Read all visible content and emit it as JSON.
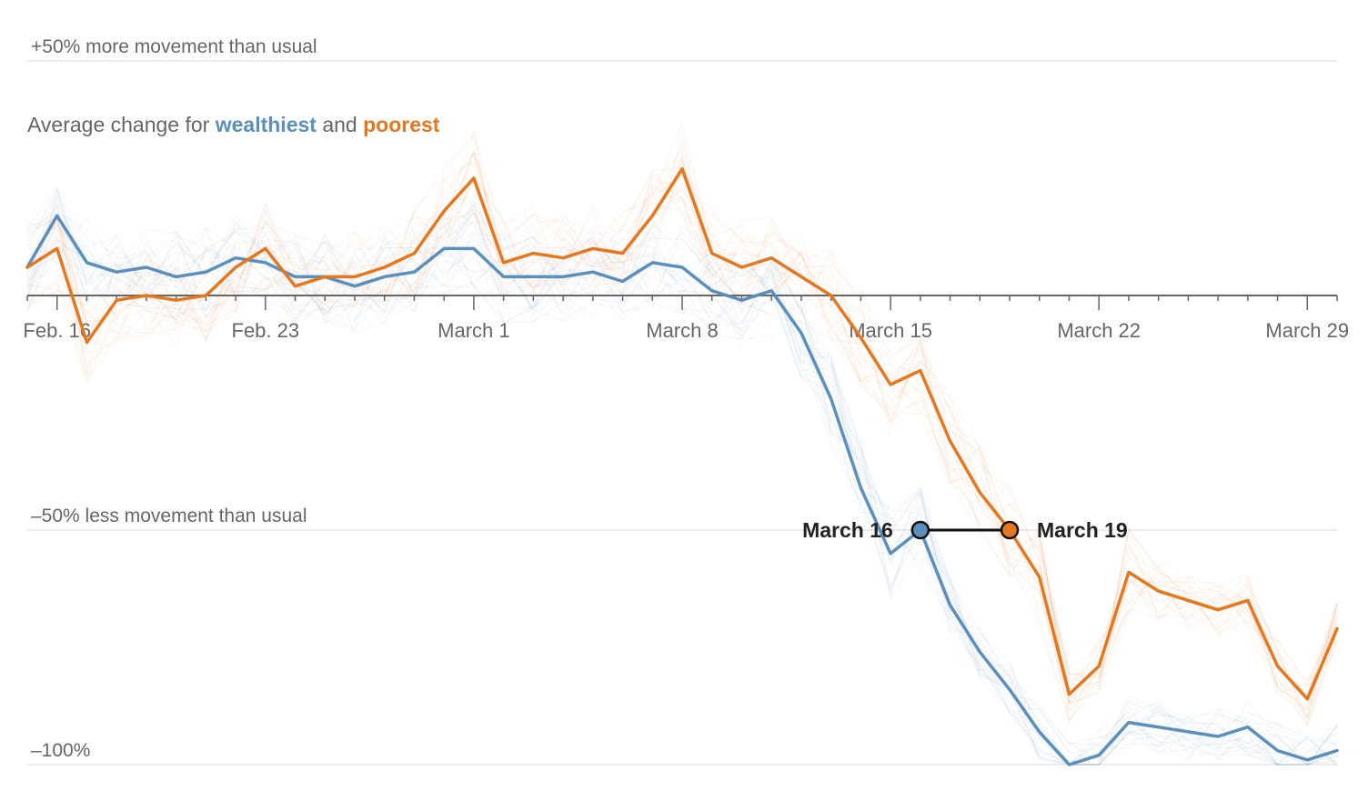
{
  "chart_data": {
    "type": "line",
    "subtitle": {
      "prefix": "Average change for ",
      "wealthiest": "wealthiest",
      "middle": " and ",
      "poorest": "poorest"
    },
    "y_labels": [
      {
        "value": 50,
        "text": "+50% more movement than usual"
      },
      {
        "value": -50,
        "text": "–50% less movement than usual"
      },
      {
        "value": -100,
        "text": "–100%"
      }
    ],
    "ylim": [
      -100,
      50
    ],
    "x_start": "Feb. 15",
    "x_end": "March 30",
    "x_tick_labels": [
      {
        "day": 1,
        "text": "Feb. 16"
      },
      {
        "day": 8,
        "text": "Feb. 23"
      },
      {
        "day": 15,
        "text": "March 1"
      },
      {
        "day": 22,
        "text": "March 8"
      },
      {
        "day": 29,
        "text": "March 15"
      },
      {
        "day": 36,
        "text": "March 22"
      },
      {
        "day": 43,
        "text": "March 29"
      }
    ],
    "series": [
      {
        "name": "wealthiest",
        "color": "#5b8fbd",
        "values": [
          6,
          17,
          7,
          5,
          6,
          4,
          5,
          8,
          7,
          4,
          4,
          2,
          4,
          5,
          10,
          10,
          4,
          4,
          4,
          5,
          3,
          7,
          6,
          1,
          -1,
          1,
          -8,
          -22,
          -41,
          -55,
          -50,
          -66,
          -76,
          -84,
          -93,
          -100,
          -98,
          -91,
          -92,
          -93,
          -94,
          -92,
          -97,
          -99,
          -97
        ]
      },
      {
        "name": "poorest",
        "color": "#e5781f",
        "values": [
          6,
          10,
          -10,
          -1,
          0,
          -1,
          0,
          6,
          10,
          2,
          4,
          4,
          6,
          9,
          18,
          25,
          7,
          9,
          8,
          10,
          9,
          17,
          27,
          9,
          6,
          8,
          4,
          0,
          -9,
          -19,
          -16,
          -31,
          -42,
          -50,
          -60,
          -85,
          -79,
          -59,
          -63,
          -65,
          -67,
          -65,
          -79,
          -86,
          -71
        ]
      }
    ],
    "annotations": [
      {
        "day": 30,
        "value": -50,
        "text": "March 16",
        "color": "#5b8fbd"
      },
      {
        "day": 33,
        "value": -50,
        "text": "March 19",
        "color": "#e5781f"
      }
    ],
    "grid": true
  }
}
